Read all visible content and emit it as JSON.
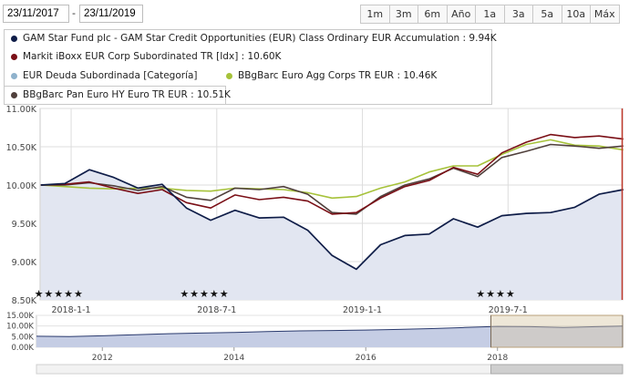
{
  "toolbar": {
    "start_date": "23/11/2017",
    "separator": "-",
    "end_date": "23/11/2019",
    "ranges": [
      "1m",
      "3m",
      "6m",
      "Año",
      "1a",
      "3a",
      "5a",
      "10a",
      "Máx"
    ]
  },
  "legend": {
    "fund": "GAM Star Fund plc - GAM Star Credit Opportunities (EUR) Class Ordinary EUR Accumulation : 9.94K",
    "index": "Markit iBoxx EUR Corp Subordinated TR [Idx] : 10.60K",
    "category": "EUR Deuda Subordinada [Categoría]",
    "bbg_agg": "BBgBarc Euro Agg Corps TR EUR : 10.46K",
    "bbg_hy": "BBgBarc Pan Euro HY Euro TR EUR : 10.51K"
  },
  "colors": {
    "fund": "#0f1d48",
    "index": "#7a0f16",
    "category": "#8fb2cc",
    "bbg_agg": "#a6c23a",
    "bbg_hy": "#50403c",
    "fund_fill": "#e2e6f1",
    "grid": "#dcdcdc"
  },
  "ratings": [
    {
      "date": "2017-12",
      "stars": "★★★★★"
    },
    {
      "date": "2018-06",
      "stars": "★★★★★"
    },
    {
      "date": "2019-06",
      "stars": "★★★★"
    }
  ],
  "chart_data": [
    {
      "type": "line",
      "x_unit": "month",
      "xlim": [
        "2017-11-23",
        "2019-11-23"
      ],
      "x_ticks": [
        {
          "label": "2018-1-1",
          "date": "2018-01-01"
        },
        {
          "label": "2018-7-1",
          "date": "2018-07-01"
        },
        {
          "label": "2019-1-1",
          "date": "2019-01-01"
        },
        {
          "label": "2019-7-1",
          "date": "2019-07-01"
        }
      ],
      "ylim": [
        8500,
        11000
      ],
      "y_ticks": [
        {
          "label": "8.50K",
          "value": 8500
        },
        {
          "label": "9.00K",
          "value": 9000
        },
        {
          "label": "9.50K",
          "value": 9500
        },
        {
          "label": "10.00K",
          "value": 10000
        },
        {
          "label": "10.50K",
          "value": 10500
        },
        {
          "label": "11.00K",
          "value": 11000
        }
      ],
      "grid": true,
      "x": [
        "2017-11",
        "2017-12",
        "2018-01",
        "2018-02",
        "2018-03",
        "2018-04",
        "2018-05",
        "2018-06",
        "2018-07",
        "2018-08",
        "2018-09",
        "2018-10",
        "2018-11",
        "2018-12",
        "2019-01",
        "2019-02",
        "2019-03",
        "2019-04",
        "2019-05",
        "2019-06",
        "2019-07",
        "2019-08",
        "2019-09",
        "2019-10",
        "2019-11"
      ],
      "series": [
        {
          "name": "GAM Star Fund plc - GAM Star Credit Opportunities (EUR) Class Ordinary EUR Accumulation",
          "key": "fund",
          "values": [
            10000,
            10020,
            10200,
            10100,
            9960,
            10010,
            9700,
            9540,
            9670,
            9570,
            9580,
            9410,
            9080,
            8900,
            9220,
            9340,
            9360,
            9560,
            9450,
            9600,
            9630,
            9640,
            9710,
            9880,
            9940
          ]
        },
        {
          "name": "Markit iBoxx EUR Corp Subordinated TR [Idx]",
          "key": "index",
          "values": [
            10000,
            10010,
            10040,
            9960,
            9890,
            9940,
            9770,
            9700,
            9870,
            9810,
            9840,
            9790,
            9620,
            9640,
            9830,
            9980,
            10060,
            10230,
            10140,
            10420,
            10560,
            10660,
            10620,
            10640,
            10600
          ]
        },
        {
          "name": "BBgBarc Euro Agg Corps TR EUR",
          "key": "bbg_agg",
          "values": [
            10000,
            9980,
            9960,
            9950,
            9960,
            9960,
            9930,
            9920,
            9960,
            9950,
            9940,
            9900,
            9830,
            9850,
            9960,
            10040,
            10170,
            10250,
            10250,
            10400,
            10530,
            10590,
            10520,
            10510,
            10460
          ]
        },
        {
          "name": "BBgBarc Pan Euro HY Euro TR EUR",
          "key": "bbg_hy",
          "values": [
            10000,
            10000,
            10030,
            9990,
            9930,
            9980,
            9840,
            9800,
            9960,
            9940,
            9980,
            9880,
            9640,
            9620,
            9850,
            10000,
            10080,
            10220,
            10110,
            10360,
            10440,
            10530,
            10510,
            10480,
            10510
          ]
        }
      ]
    },
    {
      "type": "area",
      "name": "navigator",
      "xlim": [
        2011,
        2019.9
      ],
      "x_ticks": [
        2012,
        2014,
        2016,
        2018
      ],
      "ylim": [
        0,
        15000
      ],
      "y_ticks": [
        {
          "label": "15.00K",
          "value": 15000
        },
        {
          "label": "10.00K",
          "value": 10000
        },
        {
          "label": "5.00K",
          "value": 5000
        },
        {
          "label": "0.00K",
          "value": 0
        }
      ],
      "selected_range": [
        2017.9,
        2019.9
      ],
      "x": [
        2011.0,
        2011.5,
        2012.0,
        2012.5,
        2013.0,
        2013.5,
        2014.0,
        2014.5,
        2015.0,
        2015.5,
        2016.0,
        2016.5,
        2017.0,
        2017.5,
        2018.0,
        2018.5,
        2019.0,
        2019.5,
        2019.9
      ],
      "values": [
        5200,
        5000,
        5400,
        5900,
        6400,
        6700,
        7000,
        7400,
        7700,
        7900,
        8100,
        8400,
        8800,
        9300,
        9800,
        9700,
        9300,
        9700,
        9950
      ]
    }
  ]
}
